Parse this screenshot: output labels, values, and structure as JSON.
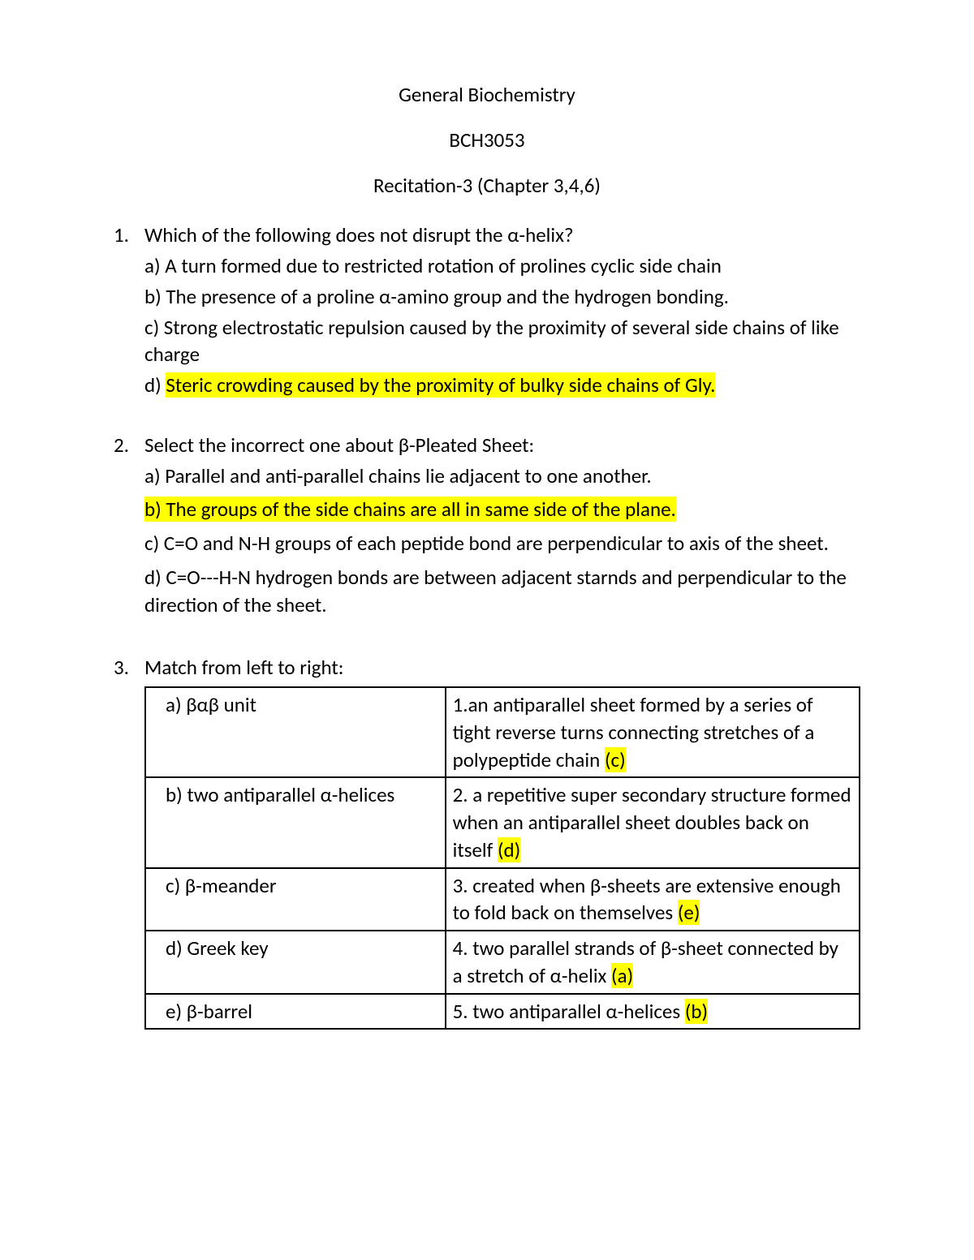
{
  "header": {
    "title": "General Biochemistry",
    "course": "BCH3053",
    "subtitle": "Recitation-3 (Chapter 3,4,6)"
  },
  "q1": {
    "num": "1.",
    "prompt": "Which of the following does not disrupt the α-helix?",
    "a": "a) A turn formed due to restricted rotation of prolines cyclic side chain",
    "b": "b) The presence of a proline α-amino group and the hydrogen bonding.",
    "c": "c) Strong electrostatic repulsion caused by the proximity of several side chains of like charge",
    "d_prefix": "d) ",
    "d_hl": "Steric crowding caused by the proximity of bulky side chains of Gly."
  },
  "q2": {
    "num": "2.",
    "prompt": "Select the incorrect one about β-Pleated Sheet:",
    "a": "a)  Parallel and anti-parallel chains lie adjacent to one another.",
    "b_hl": "b)  The groups of the side chains are all in same side of the plane.",
    "c": "c)  C=O and N-H groups of each peptide bond are perpendicular to axis of the sheet.",
    "d": "d)  C=O---H-N hydrogen bonds are between adjacent starnds and perpendicular to the direction of the sheet."
  },
  "q3": {
    "num": "3.",
    "prompt": "Match from left to right:",
    "rows": [
      {
        "left": "a)  βαβ unit",
        "right_text": "1.an antiparallel sheet formed by a series of tight reverse turns connecting stretches of a polypeptide chain ",
        "right_hl": "(c)"
      },
      {
        "left": "b)  two antiparallel α-helices",
        "right_text": "2. a repetitive super secondary structure formed when an antiparallel sheet doubles back on itself ",
        "right_hl": "(d)"
      },
      {
        "left": "c)  β-meander",
        "right_text": "3. created when β-sheets are extensive enough to fold back on themselves ",
        "right_hl": "(e)"
      },
      {
        "left": "d)   Greek key",
        "right_text": "4. two parallel strands of β-sheet connected by a stretch of α-helix ",
        "right_hl": "(a)"
      },
      {
        "left": "e) β-barrel",
        "right_text": "5. two antiparallel α-helices ",
        "right_hl": "(b)"
      }
    ]
  },
  "colors": {
    "highlight": "#ffff00",
    "text": "#000000",
    "background": "#ffffff",
    "border": "#000000"
  }
}
